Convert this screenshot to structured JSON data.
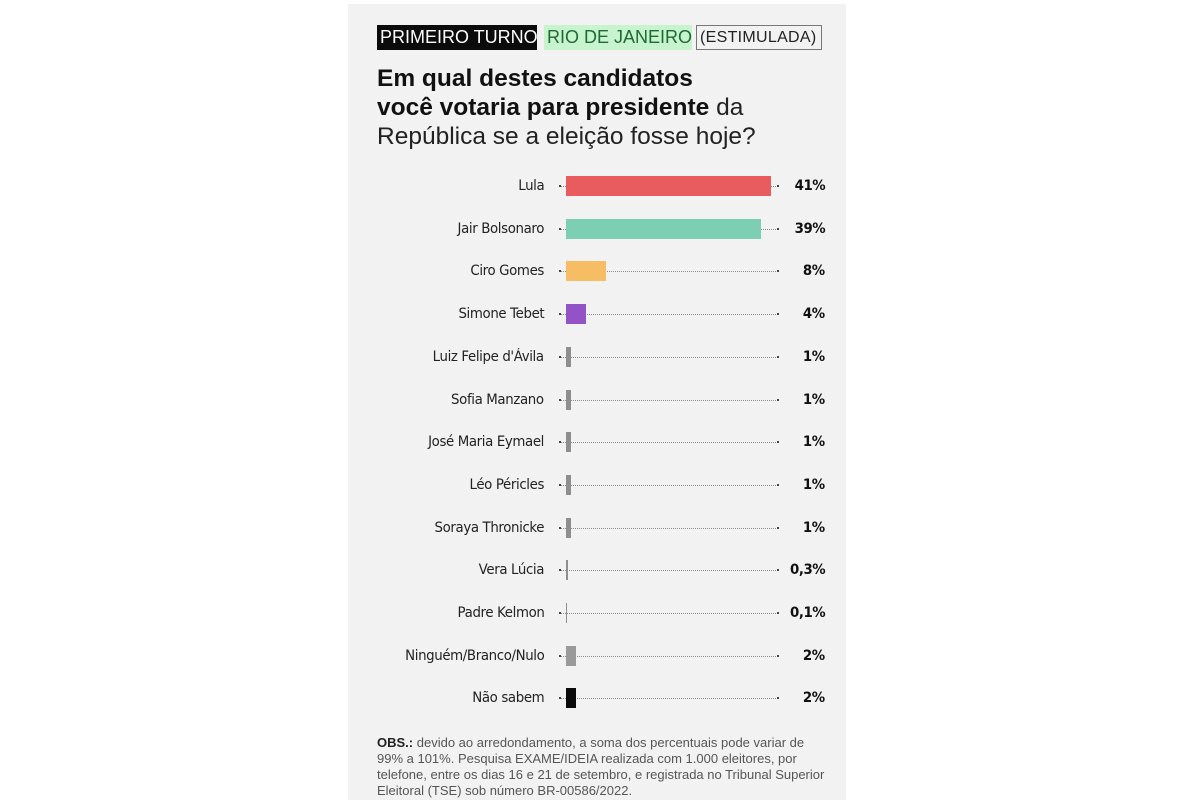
{
  "header": {
    "tags": [
      {
        "label": "PRIMEIRO TURNO",
        "style": "black",
        "bg": "#0b0b0b",
        "color": "#ffffff"
      },
      {
        "label": "RIO DE JANEIRO",
        "style": "green",
        "bg": "#c7f3cf",
        "color": "#1e6a32"
      },
      {
        "label": "(ESTIMULADA)",
        "style": "outline",
        "bg": "transparent",
        "color": "#222222"
      }
    ],
    "question_bold_1": "Em qual destes candidatos",
    "question_bold_2": "você votaria para presidente",
    "question_light_1": " da",
    "question_light_2": "República se a eleição fosse hoje?"
  },
  "note": {
    "label": "OBS.:",
    "text": " devido ao arredondamento, a soma dos percentuais pode variar de 99% a 101%. Pesquisa EXAME/IDEIA realizada com 1.000 eleitores, por telefone, entre os dias 16 e 21 de setembro, e registrada no Tribunal Superior Eleitoral (TSE) sob número BR-00586/2022."
  },
  "chart_data": {
    "type": "bar",
    "orientation": "horizontal",
    "title": "Em qual destes candidatos você votaria para presidente da República se a eleição fosse hoje?",
    "tags": [
      "PRIMEIRO TURNO",
      "RIO DE JANEIRO",
      "(ESTIMULADA)"
    ],
    "xlabel": "",
    "ylabel": "",
    "unit": "%",
    "xlim": [
      0,
      42
    ],
    "grid": false,
    "legend": "none",
    "categories": [
      "Lula",
      "Jair Bolsonaro",
      "Ciro Gomes",
      "Simone Tebet",
      "Luiz Felipe d'Ávila",
      "Sofia Manzano",
      "José Maria Eymael",
      "Léo Péricles",
      "Soraya Thronicke",
      "Vera Lúcia",
      "Padre Kelmon",
      "Ninguém/Branco/Nulo",
      "Não sabem"
    ],
    "values": [
      41,
      39,
      8,
      4,
      1,
      1,
      1,
      1,
      1,
      0.3,
      0.1,
      2,
      2
    ],
    "value_labels": [
      "41%",
      "39%",
      "8%",
      "4%",
      "1%",
      "1%",
      "1%",
      "1%",
      "1%",
      "0,3%",
      "0,1%",
      "2%",
      "2%"
    ],
    "colors": [
      "#e85c5f",
      "#7dcfb4",
      "#f6bd64",
      "#9353c6",
      "#8e8e8e",
      "#8e8e8e",
      "#8e8e8e",
      "#8e8e8e",
      "#8e8e8e",
      "#8e8e8e",
      "#8e8e8e",
      "#9a9a9a",
      "#0a0a0a"
    ],
    "note": "OBS.: devido ao arredondamento, a soma dos percentuais pode variar de 99% a 101%. Pesquisa EXAME/IDEIA realizada com 1.000 eleitores, por telefone, entre os dias 16 e 21 de setembro, e registrada no Tribunal Superior Eleitoral (TSE) sob número BR-00586/2022."
  }
}
